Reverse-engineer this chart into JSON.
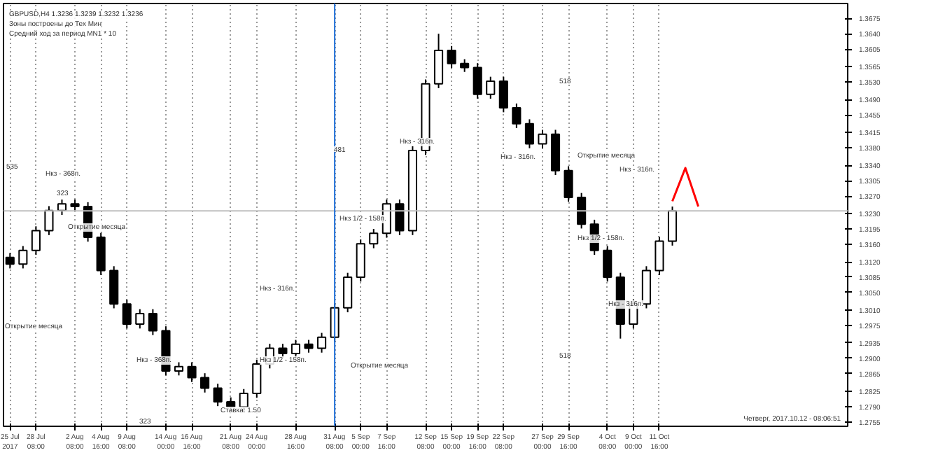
{
  "chart_data": {
    "type": "candlestick",
    "title": "GBPUSD,H4  1.3236 1.3239 1.3232 1.3236",
    "color": "#000000",
    "categories": [
      "25 Jul 2017",
      null,
      "28 Jul 08:00",
      null,
      null,
      "2 Aug 08:00",
      null,
      "4 Aug 16:00",
      null,
      "9 Aug 08:00",
      null,
      null,
      "14 Aug 00:00",
      null,
      "16 Aug 16:00",
      null,
      null,
      "21 Aug 08:00",
      null,
      "24 Aug 00:00",
      null,
      null,
      "28 Aug 16:00",
      null,
      null,
      "31 Aug 08:00",
      null,
      "5 Sep 00:00",
      null,
      "7 Sep 16:00",
      null,
      null,
      "12 Sep 08:00",
      null,
      "15 Sep 00:00",
      null,
      "19 Sep 16:00",
      null,
      "22 Sep 08:00",
      null,
      null,
      "27 Sep 00:00",
      null,
      "29 Sep 16:00",
      null,
      null,
      "4 Oct 08:00",
      null,
      "9 Oct 00:00",
      null,
      "11 Oct 16:00",
      null,
      null,
      null,
      null,
      null,
      null,
      null,
      null,
      null,
      null,
      null,
      null,
      null,
      null
    ],
    "ohlc": [
      [
        1.313,
        1.314,
        1.3105,
        1.3115
      ],
      [
        1.3115,
        1.3156,
        1.3105,
        1.3146
      ],
      [
        1.3146,
        1.3201,
        1.3136,
        1.3191
      ],
      [
        1.3191,
        1.3247,
        1.3181,
        1.3237
      ],
      [
        1.3237,
        1.3262,
        1.3227,
        1.3252
      ],
      [
        1.3252,
        1.3262,
        1.3236,
        1.3246
      ],
      [
        1.3246,
        1.3256,
        1.3166,
        1.3176
      ],
      [
        1.3176,
        1.3186,
        1.309,
        1.31
      ],
      [
        1.31,
        1.311,
        1.3014,
        1.3024
      ],
      [
        1.3024,
        1.3034,
        1.2968,
        1.2978
      ],
      [
        1.2978,
        1.3012,
        1.2968,
        1.3002
      ],
      [
        1.3002,
        1.3012,
        1.2953,
        1.2963
      ],
      [
        1.2963,
        1.2973,
        1.2861,
        1.2871
      ],
      [
        1.2871,
        1.2891,
        1.2861,
        1.2881
      ],
      [
        1.2881,
        1.2891,
        1.2846,
        1.2856
      ],
      [
        1.2856,
        1.2866,
        1.2822,
        1.2832
      ],
      [
        1.2832,
        1.2842,
        1.2791,
        1.2801
      ],
      [
        1.2801,
        1.2811,
        1.2779,
        1.2789
      ],
      [
        1.2789,
        1.283,
        1.2779,
        1.282
      ],
      [
        1.282,
        1.2897,
        1.281,
        1.2887
      ],
      [
        1.2887,
        1.2933,
        1.2877,
        1.2923
      ],
      [
        1.2923,
        1.2933,
        1.2901,
        1.2911
      ],
      [
        1.2911,
        1.2942,
        1.2901,
        1.2932
      ],
      [
        1.2932,
        1.2942,
        1.2913,
        1.2923
      ],
      [
        1.2923,
        1.2958,
        1.2913,
        1.2948
      ],
      [
        1.2948,
        1.3025,
        1.2938,
        1.3015
      ],
      [
        1.3015,
        1.3095,
        1.3005,
        1.3085
      ],
      [
        1.3085,
        1.3171,
        1.3075,
        1.3161
      ],
      [
        1.3161,
        1.3195,
        1.3151,
        1.3185
      ],
      [
        1.3185,
        1.3262,
        1.3175,
        1.3252
      ],
      [
        1.3252,
        1.3262,
        1.3181,
        1.3191
      ],
      [
        1.3191,
        1.3384,
        1.3181,
        1.3374
      ],
      [
        1.3374,
        1.3536,
        1.3364,
        1.3526
      ],
      [
        1.3526,
        1.364,
        1.3516,
        1.3602
      ],
      [
        1.3602,
        1.3612,
        1.3562,
        1.3572
      ],
      [
        1.3572,
        1.3582,
        1.3553,
        1.3563
      ],
      [
        1.3563,
        1.3573,
        1.3492,
        1.3502
      ],
      [
        1.3502,
        1.3542,
        1.3492,
        1.3532
      ],
      [
        1.3532,
        1.3542,
        1.3461,
        1.3471
      ],
      [
        1.3471,
        1.3481,
        1.3425,
        1.3435
      ],
      [
        1.3435,
        1.3445,
        1.3379,
        1.3389
      ],
      [
        1.3389,
        1.3421,
        1.3379,
        1.3411
      ],
      [
        1.3411,
        1.3421,
        1.3318,
        1.3328
      ],
      [
        1.3328,
        1.3338,
        1.3257,
        1.3267
      ],
      [
        1.3267,
        1.3277,
        1.3196,
        1.3206
      ],
      [
        1.3206,
        1.3216,
        1.3136,
        1.3146
      ],
      [
        1.3146,
        1.3156,
        1.3075,
        1.3085
      ],
      [
        1.3085,
        1.3095,
        1.2945,
        1.2978
      ],
      [
        1.2978,
        1.3034,
        1.2968,
        1.3024
      ],
      [
        1.3024,
        1.311,
        1.3014,
        1.31
      ],
      [
        1.31,
        1.3177,
        1.309,
        1.3167
      ],
      [
        1.3167,
        1.3246,
        1.3157,
        1.3236
      ],
      null,
      null,
      null,
      null,
      null,
      null,
      null,
      null,
      null,
      null,
      null,
      null,
      null
    ],
    "series": [
      {
        "type": "line",
        "color": "#ff0000",
        "values": [
          null,
          null,
          null,
          null,
          null,
          null,
          null,
          null,
          null,
          null,
          null,
          null,
          null,
          null,
          null,
          null,
          null,
          null,
          null,
          null,
          null,
          null,
          null,
          null,
          null,
          null,
          null,
          null,
          null,
          null,
          null,
          null,
          null,
          null,
          null,
          null,
          null,
          null,
          null,
          null,
          null,
          null,
          null,
          null,
          null,
          null,
          null,
          null,
          null,
          null,
          null,
          1.3258,
          1.3334,
          1.3246,
          null,
          null,
          null,
          null,
          null,
          null,
          null,
          null,
          null,
          null,
          null
        ]
      }
    ],
    "ylim": [
      1.2745,
      1.3709
    ],
    "yticks": [
      {
        "value": 1.3675,
        "label": "1.3675"
      },
      {
        "value": 1.364,
        "label": "1.3640"
      },
      {
        "value": 1.3605,
        "label": "1.3605"
      },
      {
        "value": 1.3565,
        "label": "1.3565"
      },
      {
        "value": 1.353,
        "label": "1.3530"
      },
      {
        "value": 1.349,
        "label": "1.3490"
      },
      {
        "value": 1.3455,
        "label": "1.3455"
      },
      {
        "value": 1.3415,
        "label": "1.3415"
      },
      {
        "value": 1.338,
        "label": "1.3380"
      },
      {
        "value": 1.334,
        "label": "1.3340"
      },
      {
        "value": 1.3305,
        "label": "1.3305"
      },
      {
        "value": 1.327,
        "label": "1.3270"
      },
      {
        "value": 1.323,
        "label": "1.3230"
      },
      {
        "value": 1.3195,
        "label": "1.3195"
      },
      {
        "value": 1.316,
        "label": "1.3160"
      },
      {
        "value": 1.312,
        "label": "1.3120"
      },
      {
        "value": 1.3085,
        "label": "1.3085"
      },
      {
        "value": 1.305,
        "label": "1.3050"
      },
      {
        "value": 1.301,
        "label": "1.3010"
      },
      {
        "value": 1.2975,
        "label": "1.2975"
      },
      {
        "value": 1.2935,
        "label": "1.2935"
      },
      {
        "value": 1.29,
        "label": "1.2900"
      },
      {
        "value": 1.2865,
        "label": "1.2865"
      },
      {
        "value": 1.2825,
        "label": "1.2825"
      },
      {
        "value": 1.279,
        "label": "1.2790"
      },
      {
        "value": 1.2755,
        "label": "1.2755"
      }
    ],
    "grid": "x",
    "ref_lines": [
      {
        "axis": "y",
        "value": 1.3236,
        "color": "#c0c0c0"
      },
      {
        "axis": "x",
        "value": "31 Aug 08:00",
        "color": "#1e6fd9"
      }
    ],
    "annotations": [
      "Зоны построены до Тех Мин",
      "Средний ход за период MN1 * 10",
      "Четверг, 2017.10.12 - 08:06:51",
      "535",
      "Нкз - 368п.",
      "323",
      "Открытие месяца",
      "Открытие месяца",
      "481",
      "Нкз - 316п.",
      "Нкз 1/2 - 158п.",
      "Нкз - 316п.",
      "Нкз - 368п.",
      "Нкз 1/2 - 158п.",
      "Открытие месяца",
      "Нкз - 316п.",
      "Открытие месяца",
      "518",
      "Нкз - 316п.",
      "Нкз 1/2 - 158п.",
      "Нкз - 316п.",
      "518",
      "323",
      "Ставка: 1.50"
    ]
  }
}
